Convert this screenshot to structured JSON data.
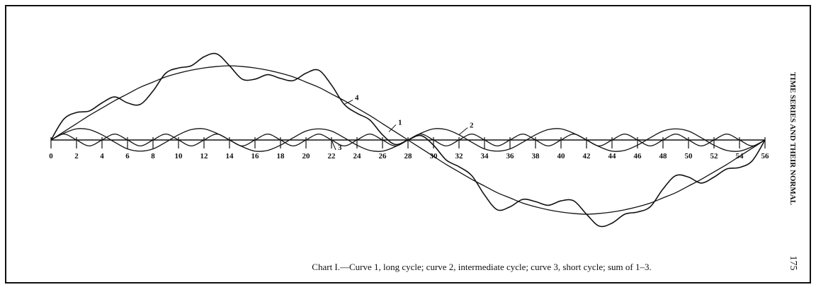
{
  "chart_data": {
    "type": "line",
    "title": "Chart I.—Curve 1, long cycle; curve 2, intermediate cycle; curve 3, short cycle; sum of 1–3.",
    "side_text": "TIME SERIES AND THEIR NORMAL",
    "page_number": "175",
    "x": [
      0,
      1,
      2,
      3,
      4,
      5,
      6,
      7,
      8,
      9,
      10,
      11,
      12,
      13,
      14,
      15,
      16,
      17,
      18,
      19,
      20,
      21,
      22,
      23,
      24,
      25,
      26,
      27,
      28,
      29,
      30,
      31,
      32,
      33,
      34,
      35,
      36,
      37,
      38,
      39,
      40,
      41,
      42,
      43,
      44,
      45,
      46,
      47,
      48,
      49,
      50,
      51,
      52,
      53,
      54,
      55,
      56
    ],
    "xlim": [
      0,
      56
    ],
    "xticks": [
      0,
      2,
      4,
      6,
      8,
      10,
      12,
      14,
      16,
      18,
      20,
      22,
      24,
      26,
      28,
      30,
      32,
      34,
      36,
      38,
      40,
      42,
      44,
      46,
      48,
      50,
      52,
      54,
      56
    ],
    "ylim": [
      -120,
      120
    ],
    "series": [
      {
        "name": "1",
        "color": "#111111",
        "values": [
          0,
          11,
          22,
          33,
          43,
          53,
          62,
          71,
          78,
          85,
          90,
          94,
          97,
          99,
          100,
          99,
          97,
          94,
          90,
          85,
          78,
          71,
          62,
          53,
          43,
          33,
          22,
          11,
          0,
          -11,
          -22,
          -33,
          -43,
          -53,
          -62,
          -71,
          -78,
          -85,
          -90,
          -94,
          -97,
          -99,
          -100,
          -99,
          -97,
          -94,
          -90,
          -85,
          -78,
          -71,
          -62,
          -53,
          -43,
          -33,
          -22,
          -11,
          0
        ]
      },
      {
        "name": "2",
        "color": "#111111",
        "values": [
          0,
          9,
          15,
          14,
          7,
          -3,
          -12,
          -15,
          -12,
          -3,
          7,
          14,
          15,
          9,
          0,
          -9,
          -15,
          -14,
          -7,
          3,
          12,
          15,
          12,
          3,
          -7,
          -14,
          -15,
          -9,
          0,
          9,
          15,
          14,
          7,
          -3,
          -12,
          -15,
          -12,
          -3,
          7,
          14,
          15,
          9,
          0,
          -9,
          -15,
          -14,
          -7,
          3,
          12,
          15,
          12,
          3,
          -7,
          -14,
          -15,
          -9,
          0
        ]
      },
      {
        "name": "3",
        "color": "#111111",
        "values": [
          0,
          8,
          0,
          -8,
          0,
          8,
          0,
          -8,
          0,
          8,
          0,
          -8,
          0,
          8,
          0,
          -8,
          0,
          8,
          0,
          -8,
          0,
          8,
          0,
          -8,
          0,
          8,
          0,
          -8,
          0,
          8,
          0,
          -8,
          0,
          8,
          0,
          -8,
          0,
          8,
          0,
          -8,
          0,
          8,
          0,
          -8,
          0,
          8,
          0,
          -8,
          0,
          8,
          0,
          -8,
          0,
          8,
          0,
          -8,
          0
        ]
      },
      {
        "name": "4",
        "color": "#111111",
        "values": [
          0,
          28,
          37,
          39,
          50,
          58,
          50,
          48,
          66,
          90,
          97,
          100,
          112,
          116,
          100,
          82,
          82,
          88,
          83,
          80,
          90,
          94,
          74,
          48,
          36,
          27,
          7,
          -6,
          0,
          6,
          -7,
          -27,
          -36,
          -48,
          -74,
          -94,
          -90,
          -80,
          -83,
          -88,
          -82,
          -82,
          -100,
          -116,
          -112,
          -100,
          -97,
          -90,
          -66,
          -48,
          -50,
          -58,
          -50,
          -39,
          -37,
          -28,
          0
        ]
      }
    ]
  }
}
